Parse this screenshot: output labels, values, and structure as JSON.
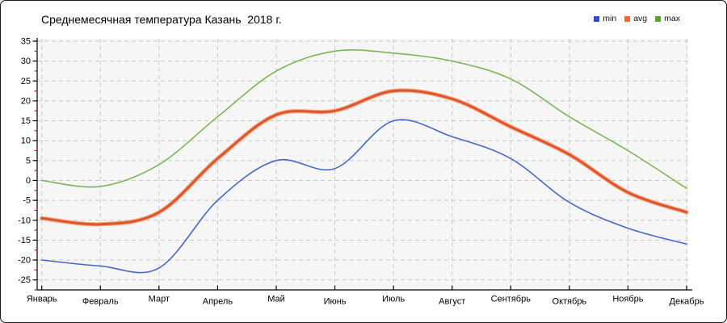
{
  "title": "Среднемесячная температура Казань  2018 г.",
  "legend": {
    "items": [
      {
        "label": "min",
        "color": "#2e4bd8"
      },
      {
        "label": "avg",
        "color": "#ed6f2e"
      },
      {
        "label": "max",
        "color": "#56a62a"
      }
    ]
  },
  "chart_data": {
    "type": "line",
    "title": "Среднемесячная температура Казань  2018 г.",
    "x_categories": [
      "Январь",
      "Февраль",
      "Март",
      "Апрель",
      "Май",
      "Июнь",
      "Июль",
      "Август",
      "Сентябрь",
      "Октябрь",
      "Ноябрь",
      "Декабрь"
    ],
    "series": [
      {
        "name": "min",
        "color": "#4468cf",
        "width": 1.6,
        "values": [
          -20,
          -21.5,
          -22,
          -5,
          5,
          3,
          15,
          11,
          5.5,
          -5.5,
          -12,
          -16
        ]
      },
      {
        "name": "avg",
        "color": "#e2552b",
        "halo": "#f4ab8a",
        "width": 3,
        "values": [
          -9.5,
          -11,
          -8,
          5.5,
          16.5,
          17.5,
          22.5,
          20.5,
          13.5,
          6.5,
          -3,
          -8
        ]
      },
      {
        "name": "max",
        "color": "#79b851",
        "width": 1.6,
        "values": [
          0,
          -1.5,
          4,
          16,
          27.5,
          32.5,
          32,
          30,
          25.5,
          16,
          7.5,
          -2
        ]
      }
    ],
    "ylim": [
      -27.5,
      35
    ],
    "ytick_labeled_min": -25,
    "ytick_labeled_max": 35,
    "ytick_step": 5,
    "ytick_minor_step": 2.5,
    "grid": true,
    "legend_position": "top-right",
    "curve": "smooth-spline",
    "plot_bg": "#f6f6f6",
    "grid_color": "#c9c9c9",
    "axis_color": "#000000",
    "minor_tick_color": "#cc2222",
    "label_color": "#000000"
  }
}
